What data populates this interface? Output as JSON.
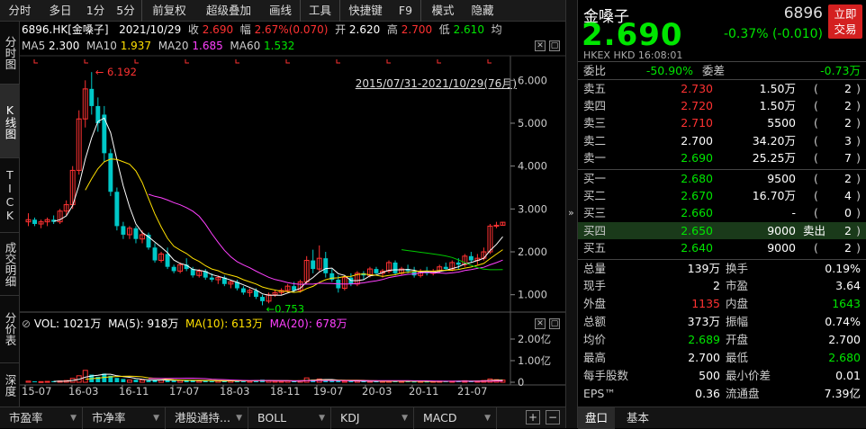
{
  "toolbar": [
    "分时",
    "多日",
    "1分",
    "5分",
    "前复权",
    "超级叠加",
    "画线",
    "工具",
    "快捷键",
    "F9",
    "模式",
    "隐藏"
  ],
  "left_tabs": [
    "分时图",
    "K线图",
    "TICK",
    "成交明细",
    "分价表",
    "深度"
  ],
  "chart_header": {
    "code_name": "6896.HK[金嗓子]",
    "date": "2021/10/29",
    "close_label": "收",
    "close": "2.690",
    "amp_label": "幅",
    "amp": "2.67%(0.070)",
    "open_label": "开",
    "open": "2.620",
    "high_label": "高",
    "high": "2.700",
    "low_label": "低",
    "low": "2.610",
    "avg_label": "均"
  },
  "ma_header": {
    "ma5_label": "MA5",
    "ma5": "2.300",
    "ma10_label": "MA10",
    "ma10": "1.937",
    "ma20_label": "MA20",
    "ma20": "1.685",
    "ma60_label": "MA60",
    "ma60": "1.532",
    "range": "2015/07/31-2021/10/29(76月)"
  },
  "vol_header": {
    "vol": "VOL: 1021万",
    "ma5": "MA(5): 918万",
    "ma10": "MA(10): 613万",
    "ma20": "MA(20): 678万"
  },
  "chart_data": {
    "type": "candlestick",
    "period": "monthly",
    "x_ticks": [
      "15-07",
      "16-03",
      "16-11",
      "17-07",
      "18-03",
      "18-11",
      "19-07",
      "20-03",
      "20-11",
      "21-07"
    ],
    "y_ticks": [
      "6.000",
      "5.000",
      "4.000",
      "3.000",
      "2.000",
      "1.000"
    ],
    "ylim": [
      0.7,
      6.3
    ],
    "vol_ticks": [
      "2.00亿",
      "1.00亿",
      "0"
    ],
    "annotations": {
      "high": "6.192",
      "low": "0.753"
    },
    "colors": {
      "up": "#ff3232",
      "down": "#00c8c8",
      "ma5": "#ffffff",
      "ma10": "#ffe000",
      "ma20": "#ff40ff",
      "ma60": "#00c800"
    },
    "ohlc": [
      [
        2.7,
        2.9,
        2.6,
        2.75
      ],
      [
        2.75,
        2.8,
        2.6,
        2.65
      ],
      [
        2.65,
        2.75,
        2.55,
        2.7
      ],
      [
        2.7,
        2.8,
        2.6,
        2.75
      ],
      [
        2.75,
        2.85,
        2.65,
        2.7
      ],
      [
        2.7,
        3.0,
        2.65,
        2.95
      ],
      [
        2.95,
        3.2,
        2.85,
        3.1
      ],
      [
        3.1,
        4.0,
        3.0,
        3.9
      ],
      [
        3.9,
        5.3,
        3.8,
        5.1
      ],
      [
        5.1,
        6.0,
        4.9,
        5.8
      ],
      [
        5.8,
        6.192,
        5.2,
        5.4
      ],
      [
        5.4,
        5.6,
        4.8,
        5.0
      ],
      [
        5.2,
        5.4,
        4.1,
        4.3
      ],
      [
        4.3,
        4.4,
        3.3,
        3.4
      ],
      [
        3.4,
        3.5,
        2.5,
        2.6
      ],
      [
        2.6,
        2.7,
        2.3,
        2.4
      ],
      [
        2.4,
        2.6,
        2.3,
        2.55
      ],
      [
        2.55,
        2.6,
        2.2,
        2.3
      ],
      [
        2.3,
        2.5,
        2.2,
        2.4
      ],
      [
        2.4,
        2.45,
        2.05,
        2.1
      ],
      [
        2.1,
        2.2,
        1.75,
        1.8
      ],
      [
        1.8,
        2.0,
        1.75,
        1.95
      ],
      [
        1.95,
        2.1,
        1.6,
        1.65
      ],
      [
        1.65,
        1.7,
        1.5,
        1.55
      ],
      [
        1.55,
        1.75,
        1.5,
        1.7
      ],
      [
        1.7,
        1.85,
        1.55,
        1.6
      ],
      [
        1.6,
        1.65,
        1.4,
        1.45
      ],
      [
        1.45,
        1.6,
        1.4,
        1.55
      ],
      [
        1.55,
        1.6,
        1.35,
        1.4
      ],
      [
        1.4,
        1.5,
        1.3,
        1.35
      ],
      [
        1.35,
        1.45,
        1.25,
        1.4
      ],
      [
        1.4,
        1.45,
        1.2,
        1.25
      ],
      [
        1.25,
        1.35,
        1.15,
        1.3
      ],
      [
        1.3,
        1.35,
        1.1,
        1.15
      ],
      [
        1.15,
        1.2,
        1.0,
        1.05
      ],
      [
        1.05,
        1.15,
        0.95,
        1.1
      ],
      [
        1.1,
        1.15,
        0.9,
        0.95
      ],
      [
        0.95,
        1.0,
        0.753,
        0.85
      ],
      [
        0.85,
        1.05,
        0.8,
        1.0
      ],
      [
        1.0,
        1.1,
        0.95,
        1.05
      ],
      [
        1.05,
        1.15,
        1.0,
        1.1
      ],
      [
        1.1,
        1.25,
        1.05,
        1.2
      ],
      [
        1.2,
        1.3,
        1.05,
        1.1
      ],
      [
        1.1,
        1.35,
        1.05,
        1.3
      ],
      [
        1.3,
        1.9,
        1.25,
        1.8
      ],
      [
        1.8,
        2.05,
        1.5,
        1.6
      ],
      [
        1.6,
        2.15,
        1.55,
        1.85
      ],
      [
        1.85,
        2.0,
        1.4,
        1.5
      ],
      [
        1.5,
        1.6,
        1.3,
        1.35
      ],
      [
        1.35,
        1.45,
        1.05,
        1.15
      ],
      [
        1.15,
        1.45,
        1.1,
        1.4
      ],
      [
        1.4,
        1.5,
        1.2,
        1.25
      ],
      [
        1.25,
        1.55,
        1.2,
        1.5
      ],
      [
        1.5,
        1.55,
        1.35,
        1.45
      ],
      [
        1.45,
        1.65,
        1.4,
        1.6
      ],
      [
        1.6,
        1.65,
        1.45,
        1.5
      ],
      [
        1.5,
        1.6,
        1.4,
        1.55
      ],
      [
        1.55,
        1.8,
        1.5,
        1.75
      ],
      [
        1.75,
        1.8,
        1.45,
        1.5
      ],
      [
        1.5,
        1.65,
        1.45,
        1.6
      ],
      [
        1.6,
        1.7,
        1.5,
        1.55
      ],
      [
        1.55,
        1.65,
        1.4,
        1.45
      ],
      [
        1.45,
        1.6,
        1.4,
        1.55
      ],
      [
        1.55,
        1.65,
        1.45,
        1.5
      ],
      [
        1.5,
        1.6,
        1.45,
        1.55
      ],
      [
        1.55,
        1.7,
        1.5,
        1.65
      ],
      [
        1.65,
        1.75,
        1.55,
        1.6
      ],
      [
        1.6,
        1.8,
        1.55,
        1.75
      ],
      [
        1.75,
        1.85,
        1.6,
        1.7
      ],
      [
        1.7,
        1.95,
        1.65,
        1.9
      ],
      [
        1.9,
        2.0,
        1.75,
        1.8
      ],
      [
        1.8,
        1.95,
        1.7,
        1.85
      ],
      [
        1.85,
        2.1,
        1.8,
        2.0
      ],
      [
        2.0,
        2.65,
        1.95,
        2.6
      ],
      [
        2.6,
        2.7,
        2.55,
        2.62
      ],
      [
        2.62,
        2.7,
        2.61,
        2.69
      ]
    ],
    "volume_yi": [
      0.05,
      0.04,
      0.03,
      0.04,
      0.05,
      0.06,
      0.08,
      0.18,
      0.3,
      0.55,
      0.35,
      0.25,
      0.4,
      0.3,
      0.2,
      0.15,
      0.1,
      0.12,
      0.1,
      0.08,
      0.12,
      0.1,
      0.09,
      0.07,
      0.08,
      0.1,
      0.07,
      0.06,
      0.08,
      0.05,
      0.06,
      0.05,
      0.07,
      0.06,
      0.08,
      0.05,
      0.09,
      0.12,
      0.07,
      0.05,
      0.04,
      0.06,
      0.05,
      0.07,
      0.2,
      0.12,
      0.15,
      0.09,
      0.06,
      0.08,
      0.05,
      0.04,
      0.06,
      0.04,
      0.05,
      0.04,
      0.05,
      0.06,
      0.05,
      0.04,
      0.04,
      0.03,
      0.04,
      0.03,
      0.04,
      0.05,
      0.04,
      0.05,
      0.06,
      0.07,
      0.05,
      0.05,
      0.08,
      0.15,
      0.12,
      0.1
    ]
  },
  "bottom_tabs": [
    "市盈率",
    "市净率",
    "港股通持...",
    "BOLL",
    "KDJ",
    "MACD"
  ],
  "quote": {
    "name": "金嗓子",
    "code": "6896",
    "trade_btn": [
      "立即",
      "交易"
    ],
    "price": "2.690",
    "change": "-0.37% (-0.010)",
    "market": "HKEX  HKD  16:08:01",
    "weibi_label": "委比",
    "weibi": "-50.90%",
    "weicha_label": "委差",
    "weicha": "-0.73万",
    "asks": [
      {
        "label": "卖五",
        "price": "2.730",
        "vol": "1.50万",
        "cnt": "2",
        "color": "red"
      },
      {
        "label": "卖四",
        "price": "2.720",
        "vol": "1.50万",
        "cnt": "2",
        "color": "red"
      },
      {
        "label": "卖三",
        "price": "2.710",
        "vol": "5500",
        "cnt": "2",
        "color": "red"
      },
      {
        "label": "卖二",
        "price": "2.700",
        "vol": "34.20万",
        "cnt": "3",
        "color": "white"
      },
      {
        "label": "卖一",
        "price": "2.690",
        "vol": "25.25万",
        "cnt": "7",
        "color": "grn"
      }
    ],
    "bids": [
      {
        "label": "买一",
        "price": "2.680",
        "vol": "9500",
        "cnt": "2",
        "color": "grn",
        "extra": ""
      },
      {
        "label": "买二",
        "price": "2.670",
        "vol": "16.70万",
        "cnt": "4",
        "color": "grn",
        "extra": ""
      },
      {
        "label": "买三",
        "price": "2.660",
        "vol": "-",
        "cnt": "0",
        "color": "grn",
        "extra": ""
      },
      {
        "label": "买四",
        "price": "2.650",
        "vol": "9000",
        "cnt": "2",
        "color": "grn",
        "extra": "卖出"
      },
      {
        "label": "买五",
        "price": "2.640",
        "vol": "9000",
        "cnt": "2",
        "color": "grn",
        "extra": ""
      }
    ],
    "stats": [
      [
        "总量",
        "139万",
        "white",
        "换手",
        "0.19%",
        "white"
      ],
      [
        "现手",
        "2",
        "white",
        "市盈",
        "3.64",
        "white"
      ],
      [
        "外盘",
        "1135",
        "red",
        "内盘",
        "1643",
        "grn"
      ],
      [
        "总额",
        "373万",
        "white",
        "振幅",
        "0.74%",
        "white"
      ],
      [
        "均价",
        "2.689",
        "grn",
        "开盘",
        "2.700",
        "white"
      ],
      [
        "最高",
        "2.700",
        "white",
        "最低",
        "2.680",
        "grn"
      ],
      [
        "每手股数",
        "500",
        "white",
        "最小价差",
        "0.01",
        "white"
      ],
      [
        "EPS™",
        "0.36",
        "white",
        "流通盘",
        "7.39亿",
        "white"
      ]
    ],
    "tabs": [
      "盘口",
      "基本"
    ]
  }
}
